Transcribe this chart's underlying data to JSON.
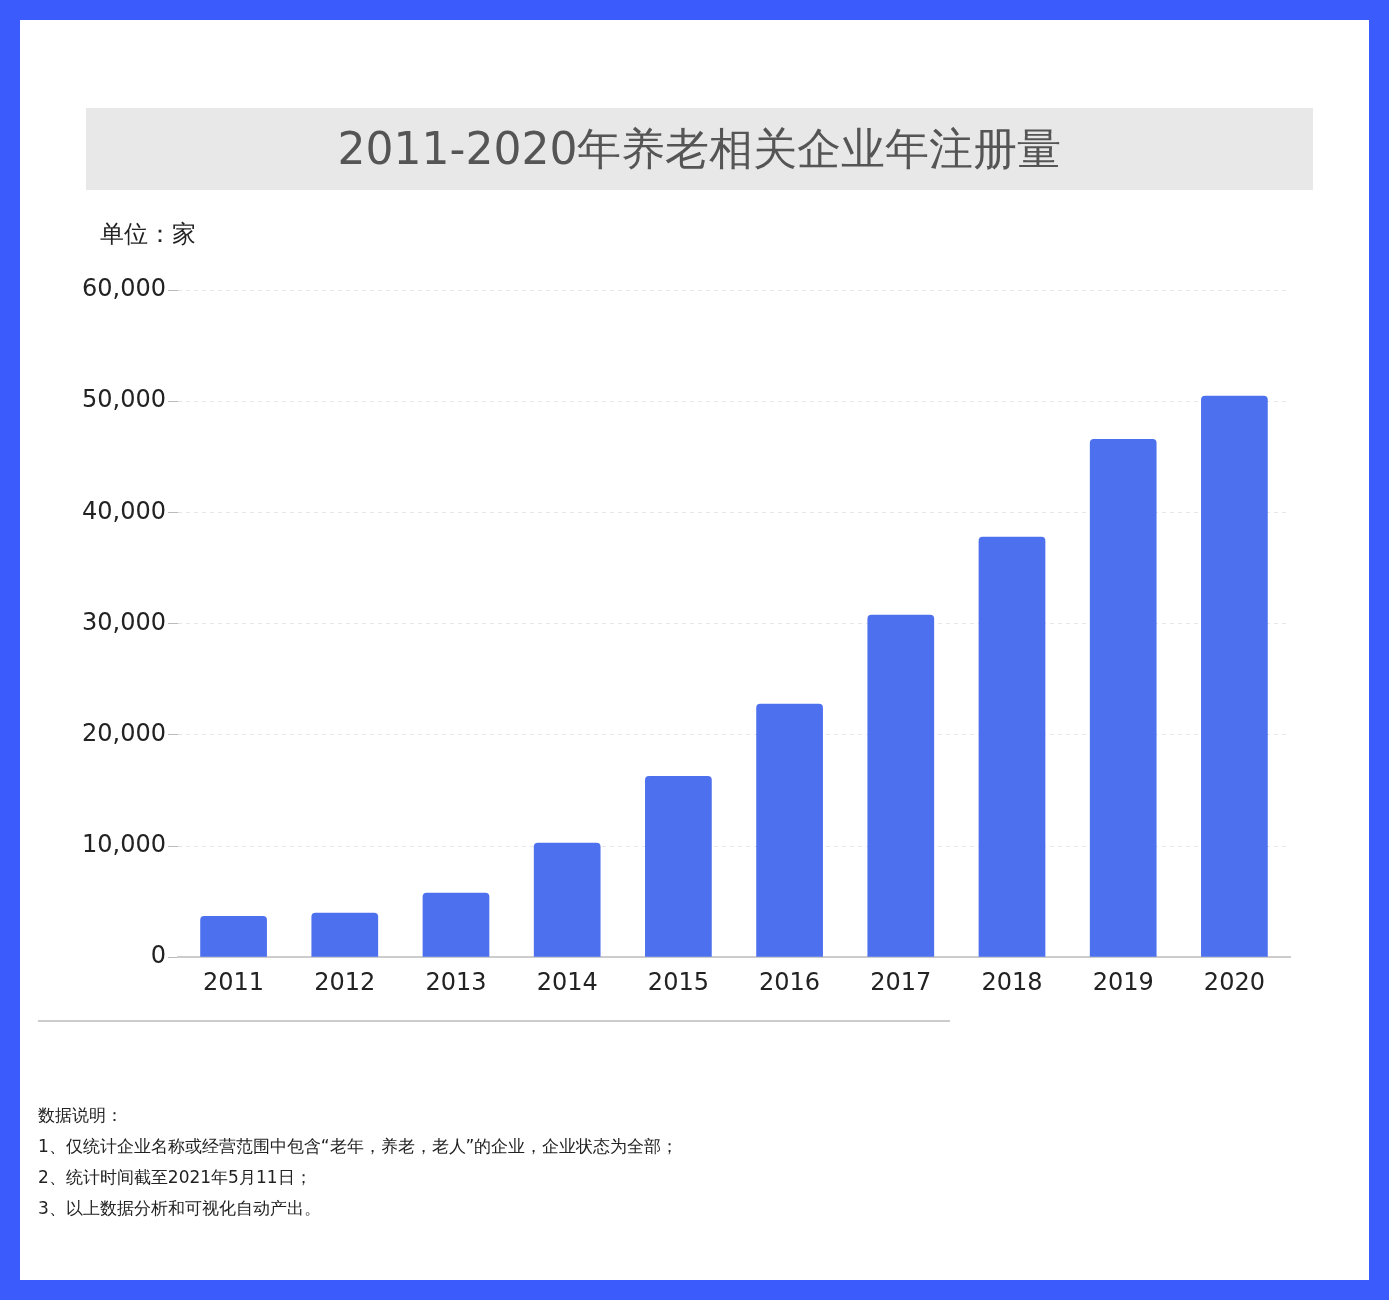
{
  "chart_data": {
    "type": "bar",
    "title": "2011-2020年养老相关企业年注册量",
    "ylabel": "单位：家",
    "categories": [
      "2011",
      "2012",
      "2013",
      "2014",
      "2015",
      "2016",
      "2017",
      "2018",
      "2019",
      "2020"
    ],
    "values": [
      3700,
      4000,
      5800,
      10300,
      16300,
      22800,
      30800,
      37800,
      46600,
      50500
    ],
    "color": "#4d70ee",
    "ylim": [
      0,
      60000
    ],
    "yticks": [
      0,
      {
        "value": 10000,
        "label": "10,000"
      },
      {
        "value": 20000,
        "label": "20,000"
      },
      {
        "value": 30000,
        "label": "30,000"
      },
      {
        "value": 40000,
        "label": "40,000"
      },
      {
        "value": 50000,
        "label": "50,000"
      },
      {
        "value": 60000,
        "label": "60,000"
      }
    ],
    "grid": "y",
    "legend": false,
    "annotations": [
      "数据说明：",
      "1、仅统计企业名称或经营范围中包含“老年，养老，老人”的企业，企业状态为全部；",
      "2、统计时间截至2021年5月11日；",
      "3、以上数据分析和可视化自动产出。"
    ]
  }
}
